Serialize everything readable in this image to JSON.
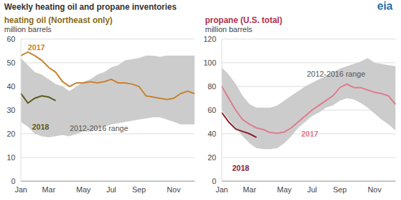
{
  "title": "Weekly heating oil and propane inventories",
  "logo": "eia",
  "chart_data": [
    {
      "type": "line",
      "title": "heating oil (Northeast only)",
      "color": "#8a6a1a",
      "y_label": "million barrels",
      "categories": [
        "Jan",
        null,
        null,
        null,
        "Mar",
        null,
        null,
        null,
        null,
        "May",
        null,
        null,
        null,
        "Jul",
        null,
        null,
        null,
        "Sep",
        null,
        null,
        null,
        null,
        "Nov",
        null,
        null,
        null
      ],
      "ylim": [
        0,
        60
      ],
      "yticks": [
        0,
        10,
        20,
        30,
        40,
        50,
        60
      ],
      "grid": true,
      "series": [
        {
          "name": "2012-2016 range",
          "type": "range",
          "color": "#cccccc",
          "values": [
            [
              25,
              52
            ],
            [
              23,
              49
            ],
            [
              20,
              46
            ],
            [
              19,
              45
            ],
            [
              18.5,
              43
            ],
            [
              19,
              41
            ],
            [
              19.5,
              40
            ],
            [
              19,
              38
            ],
            [
              20,
              40
            ],
            [
              21,
              42
            ],
            [
              21,
              43
            ],
            [
              22,
              45
            ],
            [
              23,
              46
            ],
            [
              24,
              48
            ],
            [
              24.5,
              49
            ],
            [
              25,
              51
            ],
            [
              25.5,
              51.5
            ],
            [
              26,
              52
            ],
            [
              26.5,
              53
            ],
            [
              27,
              53
            ],
            [
              27,
              52.5
            ],
            [
              26,
              53
            ],
            [
              25,
              53
            ],
            [
              24,
              53
            ],
            [
              24,
              53
            ],
            [
              24,
              53
            ]
          ]
        },
        {
          "name": "2017",
          "type": "line",
          "color": "#c8822e",
          "values": [
            53,
            54.5,
            53,
            51,
            48,
            46,
            42,
            40,
            41.5,
            41.5,
            42,
            41.5,
            42,
            43,
            41.5,
            41.5,
            41,
            40,
            36,
            35.5,
            35,
            34.5,
            35,
            37,
            38,
            37
          ]
        },
        {
          "name": "2018",
          "type": "line",
          "color": "#5b5a1c",
          "values": [
            37,
            33,
            35,
            36,
            35.5,
            34,
            null,
            null,
            null,
            null,
            null,
            null,
            null,
            null,
            null,
            null,
            null,
            null,
            null,
            null,
            null,
            null,
            null,
            null,
            null,
            null
          ]
        }
      ]
    },
    {
      "type": "line",
      "title": "propane (U.S. total)",
      "color": "#b03048",
      "y_label": "million barrels",
      "categories": [
        "Jan",
        null,
        null,
        null,
        "Mar",
        null,
        null,
        null,
        null,
        "May",
        null,
        null,
        null,
        "Jul",
        null,
        null,
        null,
        "Sep",
        null,
        null,
        null,
        null,
        "Nov",
        null,
        null,
        null
      ],
      "ylim": [
        0,
        120
      ],
      "yticks": [
        0,
        20,
        40,
        60,
        80,
        100,
        120
      ],
      "grid": true,
      "series": [
        {
          "name": "2012-2016 range",
          "type": "range",
          "color": "#cccccc",
          "values": [
            [
              60,
              96
            ],
            [
              52,
              90
            ],
            [
              45,
              82
            ],
            [
              38,
              72
            ],
            [
              32,
              65
            ],
            [
              28,
              62
            ],
            [
              27,
              62
            ],
            [
              27,
              62
            ],
            [
              28,
              64
            ],
            [
              32,
              68
            ],
            [
              38,
              72
            ],
            [
              45,
              76
            ],
            [
              50,
              80
            ],
            [
              55,
              83
            ],
            [
              58,
              86
            ],
            [
              62,
              89
            ],
            [
              64,
              92
            ],
            [
              68,
              95
            ],
            [
              70,
              97
            ],
            [
              69,
              99
            ],
            [
              66,
              101
            ],
            [
              62,
              104
            ],
            [
              57,
              100
            ],
            [
              52,
              99
            ],
            [
              48,
              98
            ],
            [
              43,
              97
            ]
          ]
        },
        {
          "name": "2017",
          "type": "line",
          "color": "#e07a8c",
          "values": [
            80,
            70,
            60,
            52,
            48,
            45,
            43.5,
            41,
            40.5,
            41.5,
            45,
            50,
            55,
            60,
            64,
            68,
            72,
            79,
            82,
            79,
            79,
            77,
            75,
            74,
            72,
            65
          ]
        },
        {
          "name": "2018",
          "type": "line",
          "color": "#8b1a2b",
          "values": [
            58,
            50,
            44,
            42,
            40,
            37,
            null,
            null,
            null,
            null,
            null,
            null,
            null,
            null,
            null,
            null,
            null,
            null,
            null,
            null,
            null,
            null,
            null,
            null,
            null,
            null
          ]
        }
      ]
    }
  ]
}
